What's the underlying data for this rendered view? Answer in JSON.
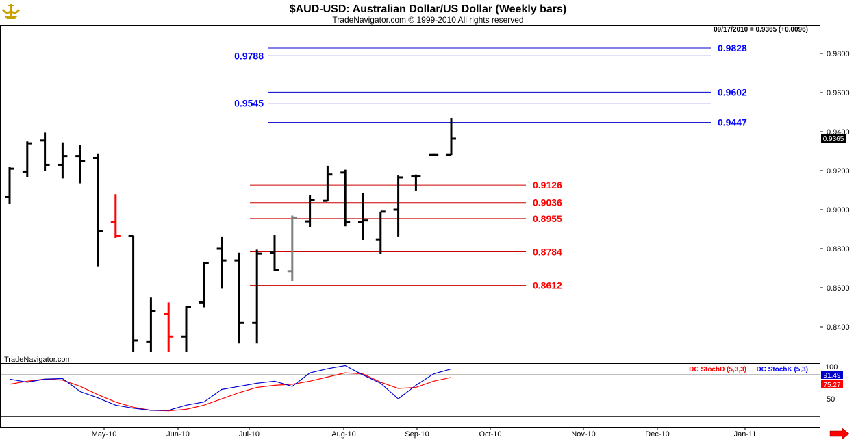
{
  "header": {
    "title": "$AUD-USD:  Australian Dollar/US Dollar  (Weekly bars)",
    "subtitle": "TradeNavigator.com © 1999-2010 All rights reserved",
    "datestamp": "09/17/2010 = 0.9365 (+0.0096)"
  },
  "watermark": "TradeNavigator.com",
  "price_tag": "0.9365",
  "colors": {
    "bar": "#000000",
    "bar_down_highlight": "#ff0000",
    "bar_gray": "#808080",
    "resistance": "#0000cc",
    "support": "#cc0000",
    "stoch_d": "#ff0000",
    "stoch_k": "#0000cc",
    "grid": "#000000"
  },
  "stoch": {
    "d_label": "DC StochD (5,3,3)",
    "k_label": "DC StochK (5,3)",
    "tick_100": "100",
    "tick_50": "50",
    "k_value": "91.49",
    "d_value": "75.27"
  },
  "chart_data": [
    {
      "type": "ohlc",
      "title": "$AUD-USD:  Australian Dollar/US Dollar  (Weekly bars)",
      "ylim": [
        0.827,
        0.988
      ],
      "y_ticks": [
        "0.8400",
        "0.8600",
        "0.8800",
        "0.9000",
        "0.9200",
        "0.9400",
        "0.9600",
        "0.9800"
      ],
      "x_ticks": [
        "May-10",
        "Jun-10",
        "Jul-10",
        "Aug-10",
        "Sep-10",
        "Oct-10",
        "Nov-10",
        "Dec-10",
        "Jan-11"
      ],
      "bars": [
        {
          "o": 0.9065,
          "h": 0.922,
          "l": 0.903,
          "c": 0.921,
          "color": "black"
        },
        {
          "o": 0.9195,
          "h": 0.935,
          "l": 0.9165,
          "c": 0.934,
          "color": "black"
        },
        {
          "o": 0.9355,
          "h": 0.9395,
          "l": 0.92,
          "c": 0.923,
          "color": "black"
        },
        {
          "o": 0.923,
          "h": 0.9345,
          "l": 0.916,
          "c": 0.9275,
          "color": "black"
        },
        {
          "o": 0.9275,
          "h": 0.933,
          "l": 0.9135,
          "c": 0.925,
          "color": "black"
        },
        {
          "o": 0.9265,
          "h": 0.9285,
          "l": 0.871,
          "c": 0.889,
          "color": "black"
        },
        {
          "o": 0.8935,
          "h": 0.908,
          "l": 0.8855,
          "c": 0.8865,
          "color": "red"
        },
        {
          "o": 0.8865,
          "h": 0.8865,
          "l": 0.827,
          "c": 0.833,
          "color": "black"
        },
        {
          "o": 0.8325,
          "h": 0.855,
          "l": 0.827,
          "c": 0.848,
          "color": "black"
        },
        {
          "o": 0.8465,
          "h": 0.8525,
          "l": 0.827,
          "c": 0.835,
          "color": "red"
        },
        {
          "o": 0.835,
          "h": 0.8505,
          "l": 0.827,
          "c": 0.85,
          "color": "black"
        },
        {
          "o": 0.8525,
          "h": 0.873,
          "l": 0.85,
          "c": 0.8725,
          "color": "black"
        },
        {
          "o": 0.88,
          "h": 0.886,
          "l": 0.8595,
          "c": 0.874,
          "color": "black"
        },
        {
          "o": 0.874,
          "h": 0.878,
          "l": 0.8315,
          "c": 0.842,
          "color": "black"
        },
        {
          "o": 0.842,
          "h": 0.8795,
          "l": 0.8315,
          "c": 0.8775,
          "color": "black"
        },
        {
          "o": 0.878,
          "h": 0.887,
          "l": 0.8685,
          "c": 0.869,
          "color": "black"
        },
        {
          "o": 0.8685,
          "h": 0.897,
          "l": 0.8635,
          "c": 0.896,
          "color": "gray"
        },
        {
          "o": 0.894,
          "h": 0.9075,
          "l": 0.891,
          "c": 0.905,
          "color": "black"
        },
        {
          "o": 0.9045,
          "h": 0.9225,
          "l": 0.9045,
          "c": 0.918,
          "color": "black"
        },
        {
          "o": 0.919,
          "h": 0.9205,
          "l": 0.8915,
          "c": 0.8935,
          "color": "black"
        },
        {
          "o": 0.8935,
          "h": 0.9085,
          "l": 0.8845,
          "c": 0.8945,
          "color": "black"
        },
        {
          "o": 0.8845,
          "h": 0.899,
          "l": 0.8775,
          "c": 0.899,
          "color": "black"
        },
        {
          "o": 0.9,
          "h": 0.9175,
          "l": 0.886,
          "c": 0.9165,
          "color": "black"
        },
        {
          "o": 0.917,
          "h": 0.918,
          "l": 0.9095,
          "c": 0.917,
          "color": "black"
        },
        {
          "o": 0.928,
          "h": 0.9285,
          "l": 0.9275,
          "c": 0.928,
          "color": "black"
        },
        {
          "o": 0.928,
          "h": 0.947,
          "l": 0.928,
          "c": 0.9365,
          "color": "black"
        }
      ],
      "resistance_levels": [
        {
          "value": 0.9828,
          "label": "0.9828",
          "label_side": "right"
        },
        {
          "value": 0.9788,
          "label": "0.9788",
          "label_side": "left"
        },
        {
          "value": 0.9602,
          "label": "0.9602",
          "label_side": "right"
        },
        {
          "value": 0.9545,
          "label": "0.9545",
          "label_side": "left"
        },
        {
          "value": 0.9447,
          "label": "0.9447",
          "label_side": "right"
        }
      ],
      "support_levels": [
        {
          "value": 0.9126,
          "label": "0.9126"
        },
        {
          "value": 0.9036,
          "label": "0.9036"
        },
        {
          "value": 0.8955,
          "label": "0.8955"
        },
        {
          "value": 0.8784,
          "label": "0.8784"
        },
        {
          "value": 0.8612,
          "label": "0.8612"
        }
      ]
    },
    {
      "type": "line",
      "ylim": [
        0,
        100
      ],
      "series": [
        {
          "name": "DC StochD (5,3,3)",
          "values": [
            62,
            68,
            72,
            70,
            58,
            42,
            28,
            18,
            12,
            11,
            14,
            22,
            34,
            46,
            56,
            60,
            62,
            68,
            76,
            84,
            82,
            66,
            54,
            56,
            68,
            75.27
          ]
        },
        {
          "name": "DC StochK (5,3)",
          "values": [
            72,
            66,
            72,
            73,
            48,
            36,
            22,
            16,
            12,
            12,
            22,
            28,
            52,
            58,
            64,
            68,
            58,
            84,
            92,
            98,
            80,
            64,
            34,
            60,
            82,
            91.49
          ]
        }
      ]
    }
  ]
}
